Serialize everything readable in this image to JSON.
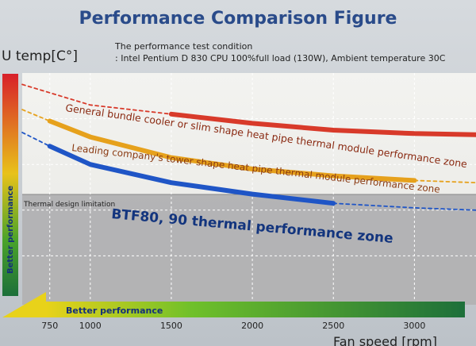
{
  "colors": {
    "red": "#d83a2a",
    "orange": "#e6a11c",
    "blue": "#1f55c6",
    "title": "#2a4b8a",
    "gray_zone": "#a9a9ab",
    "grid": "#ffffff"
  },
  "chart_data": {
    "type": "line",
    "title": "Performance Comparison Figure",
    "ylabel": "U temp[C°]",
    "xlabel": "Fan speed [rpm]",
    "condition": {
      "heading": "The performance test condition",
      "detail": ": Intel Pentium D 830 CPU 100%full load (130W), Ambient temperature 30C"
    },
    "xticks": [
      {
        "value": 750,
        "label": "750"
      },
      {
        "value": 1000,
        "label": "1000"
      },
      {
        "value": 1500,
        "label": "1500"
      },
      {
        "value": 2000,
        "label": "2000"
      },
      {
        "value": 2500,
        "label": "2500"
      },
      {
        "value": 3000,
        "label": "3000"
      }
    ],
    "xlim": [
      580,
      3380
    ],
    "ylim": [
      0,
      100
    ],
    "thermal_limit": {
      "label": "Thermal design limitation",
      "y": 59
    },
    "axis_arrows": {
      "y_label": "Better performance",
      "x_label": "Better performance"
    },
    "series": [
      {
        "name": "General bundle cooler or slim shape heat pipe thermal module performance zone",
        "color_key": "red",
        "dashed": {
          "x": [
            580,
            1000,
            1500
          ],
          "y": [
            95,
            86,
            82
          ]
        },
        "solid": {
          "x": [
            1500,
            2000,
            2500,
            3000,
            3380
          ],
          "y": [
            82,
            78,
            75,
            73.5,
            73
          ]
        }
      },
      {
        "name": "Leading company's tower shape heat pipe thermal module performance zone",
        "color_key": "orange",
        "dashed": {
          "x": [
            580,
            750
          ],
          "y": [
            84,
            79
          ]
        },
        "solid": {
          "x": [
            750,
            1000,
            1500,
            2000,
            2500,
            3000
          ],
          "y": [
            79,
            72,
            63,
            58,
            55,
            53
          ]
        },
        "dashed_end": {
          "x": [
            3000,
            3380
          ],
          "y": [
            53,
            52
          ]
        }
      },
      {
        "name": "BTF80, 90 thermal performance zone",
        "color_key": "blue",
        "dashed": {
          "x": [
            580,
            750
          ],
          "y": [
            74,
            68
          ]
        },
        "solid": {
          "x": [
            750,
            1000,
            1500,
            2000,
            2500
          ],
          "y": [
            68,
            60,
            52,
            47,
            43
          ]
        },
        "dashed_end": {
          "x": [
            2500,
            3000,
            3380
          ],
          "y": [
            43,
            41,
            40
          ]
        }
      }
    ]
  }
}
